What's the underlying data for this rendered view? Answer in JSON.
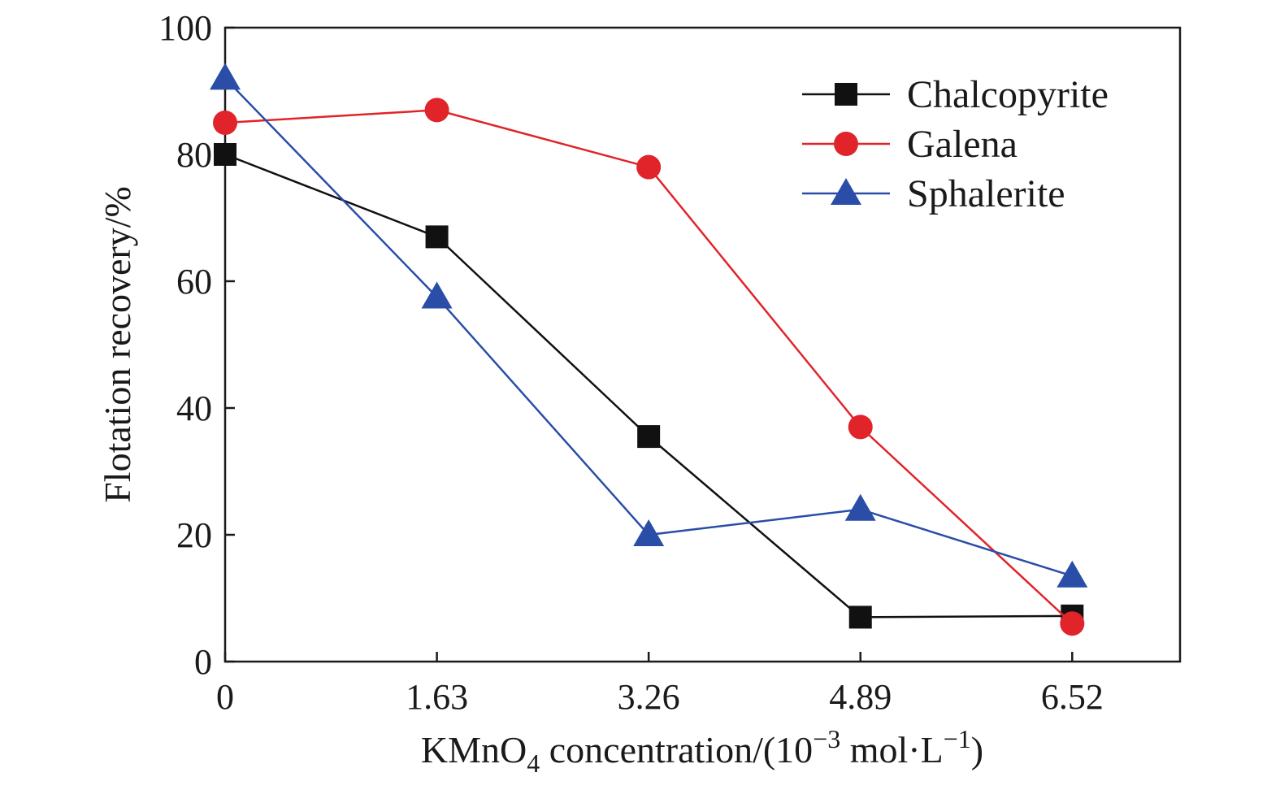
{
  "chart_data": {
    "type": "line",
    "x": [
      0,
      1.63,
      3.26,
      4.89,
      6.52
    ],
    "x_tick_labels": [
      "0",
      "1.63",
      "3.26",
      "4.89",
      "6.52"
    ],
    "y_ticks": [
      0,
      20,
      40,
      60,
      80,
      100
    ],
    "xlim": [
      0,
      7.35
    ],
    "ylim": [
      0,
      100
    ],
    "xlabel": {
      "pre": "KMnO",
      "sub": "4",
      "mid": " concentration/(10",
      "sup1": "−3",
      "mid2": " mol·L",
      "sup2": "−1",
      "post": ")"
    },
    "ylabel": "Flotation recovery/%",
    "legend_position": "top-right",
    "series": [
      {
        "name": "Chalcopyrite",
        "marker": "square",
        "color": "#111111",
        "values": [
          80,
          67,
          35.5,
          7,
          7.2
        ]
      },
      {
        "name": "Galena",
        "marker": "circle",
        "color": "#e0242a",
        "values": [
          85,
          87,
          78,
          37,
          6
        ]
      },
      {
        "name": "Sphalerite",
        "marker": "triangle",
        "color": "#2a4ea8",
        "values": [
          92,
          57.5,
          20,
          24,
          13.5
        ]
      }
    ]
  }
}
